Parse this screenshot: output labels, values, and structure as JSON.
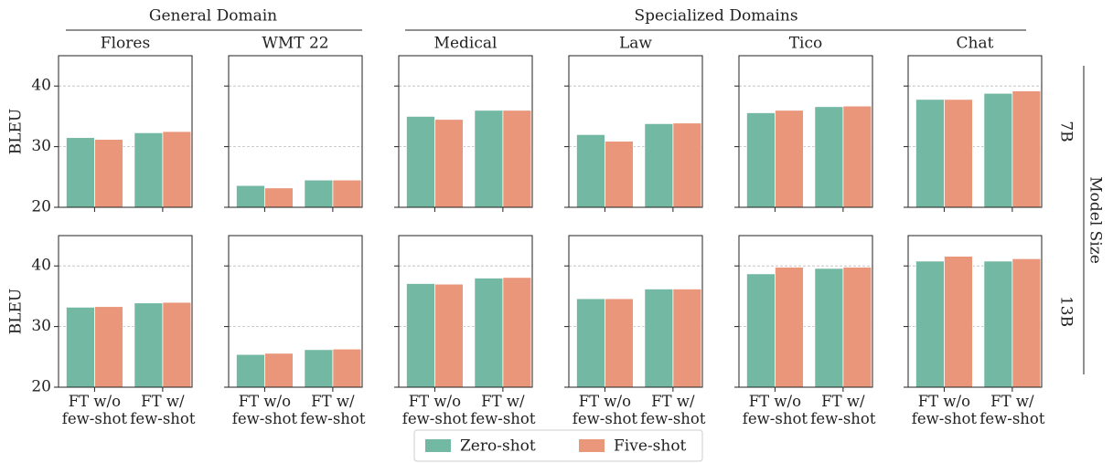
{
  "headers": {
    "general": "General Domain",
    "specialized": "Specialized Domains",
    "model_size": "Model Size",
    "rows": [
      "7B",
      "13B"
    ]
  },
  "legend": [
    {
      "name": "Zero-shot",
      "color": "#72b8a3"
    },
    {
      "name": "Five-shot",
      "color": "#e9967a"
    }
  ],
  "chart_data": [
    {
      "type": "bar",
      "title": "Flores",
      "ylabel": "BLEU",
      "ylim": [
        20,
        45
      ],
      "yticks": [
        20,
        30,
        40
      ],
      "grid": true,
      "series": [
        {
          "values": [
            31.5,
            32.3
          ]
        },
        {
          "values": [
            31.2,
            32.5
          ]
        }
      ]
    },
    {
      "type": "bar",
      "title": "WMT 22",
      "ylim": [
        20,
        45
      ],
      "yticks": [
        20,
        30,
        40
      ],
      "grid": true,
      "series": [
        {
          "values": [
            23.6,
            24.5
          ]
        },
        {
          "values": [
            23.2,
            24.5
          ]
        }
      ]
    },
    {
      "type": "bar",
      "title": "Medical",
      "ylim": [
        20,
        45
      ],
      "yticks": [
        20,
        30,
        40
      ],
      "grid": true,
      "series": [
        {
          "values": [
            35.0,
            36.0
          ]
        },
        {
          "values": [
            34.5,
            36.0
          ]
        }
      ]
    },
    {
      "type": "bar",
      "title": "Law",
      "ylim": [
        20,
        45
      ],
      "yticks": [
        20,
        30,
        40
      ],
      "grid": true,
      "series": [
        {
          "values": [
            32.0,
            33.8
          ]
        },
        {
          "values": [
            30.9,
            33.9
          ]
        }
      ]
    },
    {
      "type": "bar",
      "title": "Tico",
      "ylim": [
        20,
        45
      ],
      "yticks": [
        20,
        30,
        40
      ],
      "grid": true,
      "series": [
        {
          "values": [
            35.6,
            36.6
          ]
        },
        {
          "values": [
            36.0,
            36.7
          ]
        }
      ]
    },
    {
      "type": "bar",
      "title": "Chat",
      "ylim": [
        20,
        45
      ],
      "yticks": [
        20,
        30,
        40
      ],
      "grid": true,
      "series": [
        {
          "values": [
            37.8,
            38.8
          ]
        },
        {
          "values": [
            37.8,
            39.2
          ]
        }
      ]
    },
    {
      "type": "bar",
      "ylabel": "BLEU",
      "categories": [
        "FT w/o\nfew-shot",
        "FT w/\nfew-shot"
      ],
      "ylim": [
        20,
        45
      ],
      "yticks": [
        20,
        30,
        40
      ],
      "grid": true,
      "series": [
        {
          "values": [
            33.2,
            33.9
          ]
        },
        {
          "values": [
            33.3,
            34.0
          ]
        }
      ]
    },
    {
      "type": "bar",
      "categories": [
        "FT w/o\nfew-shot",
        "FT w/\nfew-shot"
      ],
      "ylim": [
        20,
        45
      ],
      "yticks": [
        20,
        30,
        40
      ],
      "grid": true,
      "series": [
        {
          "values": [
            25.4,
            26.2
          ]
        },
        {
          "values": [
            25.6,
            26.3
          ]
        }
      ]
    },
    {
      "type": "bar",
      "categories": [
        "FT w/o\nfew-shot",
        "FT w/\nfew-shot"
      ],
      "ylim": [
        20,
        45
      ],
      "yticks": [
        20,
        30,
        40
      ],
      "grid": true,
      "series": [
        {
          "values": [
            37.1,
            38.0
          ]
        },
        {
          "values": [
            37.0,
            38.1
          ]
        }
      ]
    },
    {
      "type": "bar",
      "categories": [
        "FT w/o\nfew-shot",
        "FT w/\nfew-shot"
      ],
      "ylim": [
        20,
        45
      ],
      "yticks": [
        20,
        30,
        40
      ],
      "grid": true,
      "series": [
        {
          "values": [
            34.6,
            36.2
          ]
        },
        {
          "values": [
            34.6,
            36.2
          ]
        }
      ]
    },
    {
      "type": "bar",
      "categories": [
        "FT w/o\nfew-shot",
        "FT w/\nfew-shot"
      ],
      "ylim": [
        20,
        45
      ],
      "yticks": [
        20,
        30,
        40
      ],
      "grid": true,
      "series": [
        {
          "values": [
            38.7,
            39.6
          ]
        },
        {
          "values": [
            39.8,
            39.8
          ]
        }
      ]
    },
    {
      "type": "bar",
      "categories": [
        "FT w/o\nfew-shot",
        "FT w/\nfew-shot"
      ],
      "ylim": [
        20,
        45
      ],
      "yticks": [
        20,
        30,
        40
      ],
      "grid": true,
      "series": [
        {
          "values": [
            40.8,
            40.8
          ]
        },
        {
          "values": [
            41.6,
            41.2
          ]
        }
      ]
    }
  ]
}
